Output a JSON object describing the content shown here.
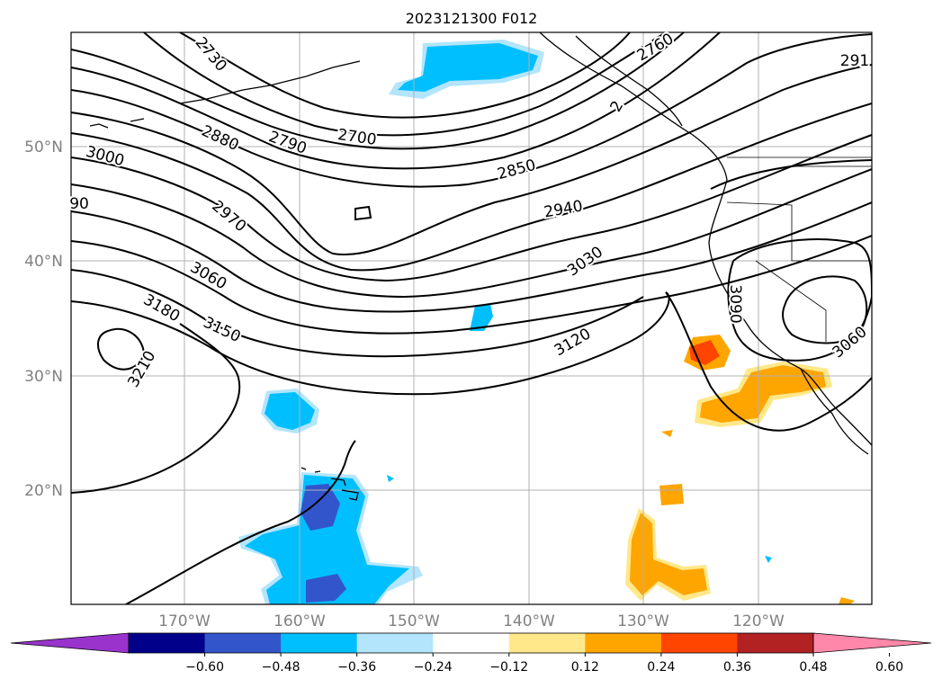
{
  "title": "2023121300 F012",
  "map": {
    "latitude_labels": [
      "50°N",
      "40°N",
      "30°N",
      "20°N"
    ],
    "longitude_labels": [
      "170°W",
      "160°W",
      "150°W",
      "140°W",
      "130°W",
      "120°W"
    ],
    "contour_labels": [
      "2730",
      "2760",
      "291",
      "2880",
      "2790",
      "2700",
      "3000",
      "90",
      "2850",
      "2970",
      "2940",
      "3060",
      "3030",
      "3180",
      "3150",
      "3120",
      "3210",
      "3090",
      "3060",
      "2"
    ]
  },
  "colorbar": {
    "tick_labels": [
      "−0.60",
      "−0.48",
      "−0.36",
      "−0.24",
      "−0.12",
      "0.12",
      "0.24",
      "0.36",
      "0.48",
      "0.60"
    ],
    "colors": [
      "#9933cc",
      "#00008b",
      "#3355cc",
      "#00bfff",
      "#b3e5fc",
      "#ffffff",
      "#ffe88a",
      "#ffa500",
      "#ff4500",
      "#b22222",
      "#ff88aa"
    ]
  }
}
